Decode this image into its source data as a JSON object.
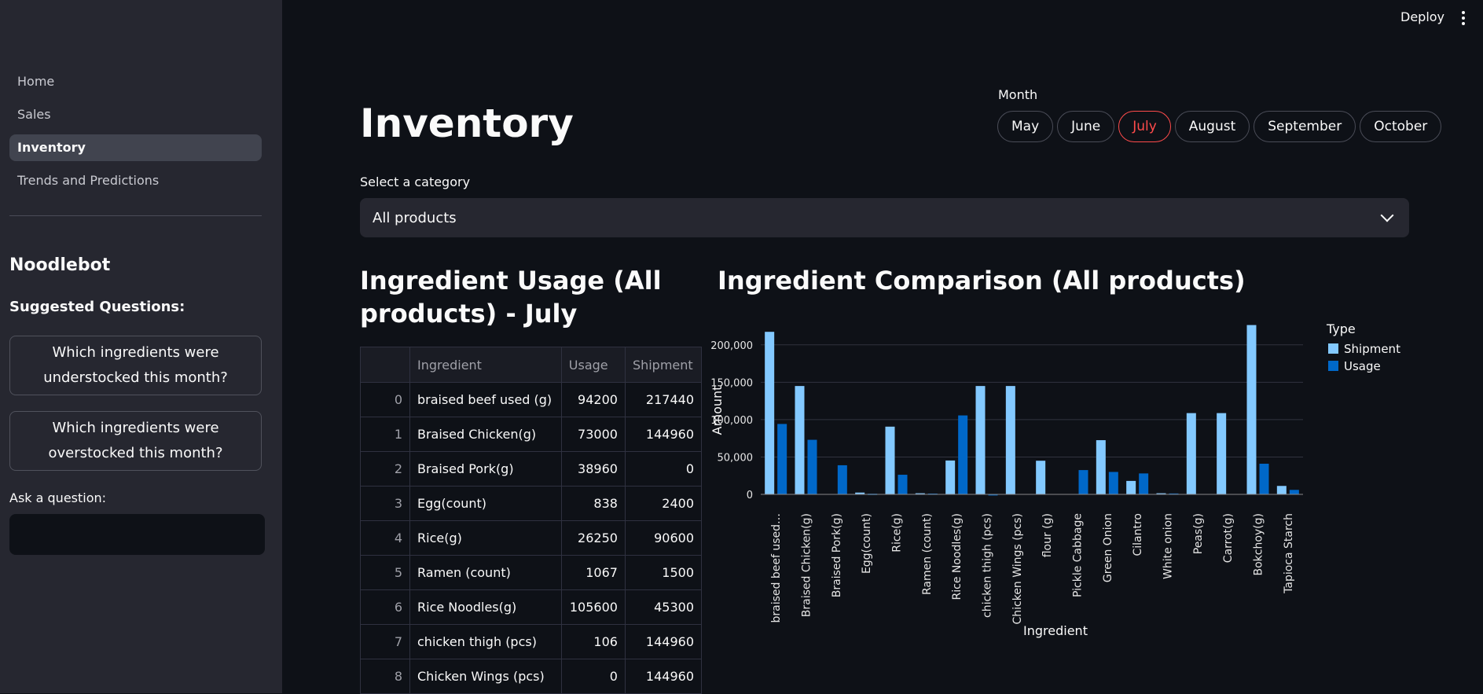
{
  "sidebar": {
    "nav": [
      "Home",
      "Sales",
      "Inventory",
      "Trends and Predictions"
    ],
    "active": "Inventory",
    "title": "Noodlebot",
    "suggested_label": "Suggested Questions:",
    "questions": [
      "Which ingredients were understocked this month?",
      "Which ingredients were overstocked this month?"
    ],
    "ask_label": "Ask a question:",
    "ask_value": ""
  },
  "header": {
    "deploy": "Deploy"
  },
  "page": {
    "title": "Inventory",
    "month_label": "Month",
    "months": [
      "May",
      "June",
      "July",
      "August",
      "September",
      "October"
    ],
    "selected_month": "July",
    "category_label": "Select a category",
    "category_value": "All products",
    "usage_title": "Ingredient Usage (All products) - July",
    "comparison_title": "Ingredient Comparison (All products)"
  },
  "colors": {
    "shipment": "#83c9ff",
    "usage": "#0068c9",
    "accent": "#ff4b4b"
  },
  "table": {
    "columns": [
      "",
      "Ingredient",
      "Usage",
      "Shipment"
    ],
    "rows": [
      [
        "0",
        "braised beef used (g)",
        "94200",
        "217440"
      ],
      [
        "1",
        "Braised Chicken(g)",
        "73000",
        "144960"
      ],
      [
        "2",
        "Braised Pork(g)",
        "38960",
        "0"
      ],
      [
        "3",
        "Egg(count)",
        "838",
        "2400"
      ],
      [
        "4",
        "Rice(g)",
        "26250",
        "90600"
      ],
      [
        "5",
        "Ramen (count)",
        "1067",
        "1500"
      ],
      [
        "6",
        "Rice Noodles(g)",
        "105600",
        "45300"
      ],
      [
        "7",
        "chicken thigh (pcs)",
        "106",
        "144960"
      ],
      [
        "8",
        "Chicken Wings (pcs)",
        "0",
        "144960"
      ]
    ]
  },
  "chart_data": {
    "type": "bar",
    "xlabel": "Ingredient",
    "ylabel": "Amount",
    "legend_title": "Type",
    "legend_position": "right",
    "grid": true,
    "ylim": [
      0,
      225000
    ],
    "yticks": [
      "0",
      "50,000",
      "100,000",
      "150,000",
      "200,000"
    ],
    "categories": [
      "braised beef used…",
      "Braised Chicken(g)",
      "Braised Pork(g)",
      "Egg(count)",
      "Rice(g)",
      "Ramen (count)",
      "Rice Noodles(g)",
      "chicken thigh (pcs)",
      "Chicken Wings (pcs)",
      "flour (g)",
      "Pickle Cabbage",
      "Green Onion",
      "Cilantro",
      "White onion",
      "Peas(g)",
      "Carrot(g)",
      "Bokchoy(g)",
      "Tapioca Starch"
    ],
    "series": [
      {
        "name": "Shipment",
        "values": [
          217440,
          144960,
          0,
          2400,
          90600,
          1500,
          45300,
          144960,
          144960,
          45000,
          0,
          72500,
          18000,
          1500,
          108700,
          108700,
          226500,
          11300
        ]
      },
      {
        "name": "Usage",
        "values": [
          94200,
          73000,
          38960,
          838,
          26250,
          1067,
          105600,
          106,
          0,
          0,
          32500,
          30000,
          28000,
          1200,
          0,
          0,
          41000,
          6000
        ]
      }
    ]
  }
}
